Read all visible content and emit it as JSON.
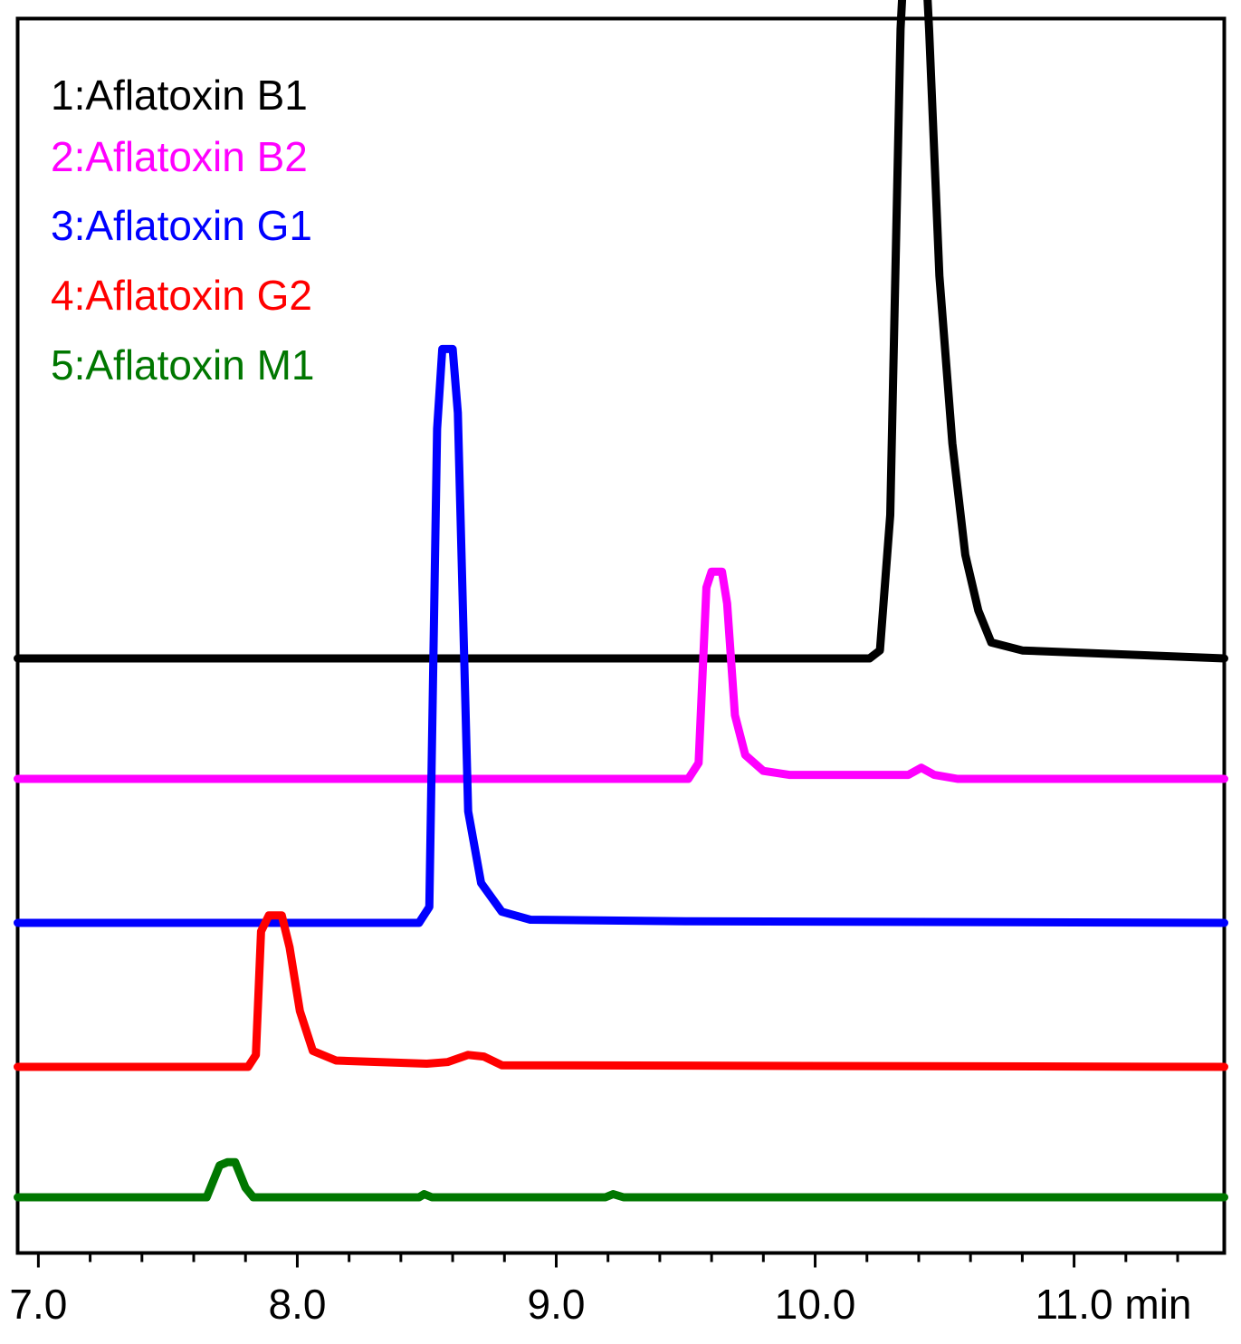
{
  "chart_data": {
    "type": "line",
    "x_unit": "min",
    "xlim": [
      6.92,
      11.58
    ],
    "x_major_ticks": [
      7.0,
      8.0,
      9.0,
      10.0,
      11.0
    ],
    "x_tick_labels": [
      "7.0",
      "8.0",
      "9.0",
      "10.0",
      "11.0 min"
    ],
    "x_minor_step": 0.2,
    "y_axis_shown": false,
    "grid": false,
    "legend_position": "top-left",
    "series": [
      {
        "name": "1:Aflatoxin B1",
        "color": "#000000",
        "peak_time": 10.39,
        "points": [
          [
            6.92,
            0
          ],
          [
            10.21,
            0
          ],
          [
            10.25,
            0.01
          ],
          [
            10.29,
            0.18
          ],
          [
            10.33,
            0.79
          ],
          [
            10.36,
            0.98
          ],
          [
            10.41,
            0.98
          ],
          [
            10.44,
            0.79
          ],
          [
            10.48,
            0.48
          ],
          [
            10.53,
            0.27
          ],
          [
            10.58,
            0.13
          ],
          [
            10.63,
            0.06
          ],
          [
            10.68,
            0.02
          ],
          [
            10.8,
            0.01
          ],
          [
            11.58,
            0
          ]
        ]
      },
      {
        "name": "2:Aflatoxin B2",
        "color": "#ff00ff",
        "peak_time": 9.62,
        "points": [
          [
            6.92,
            0
          ],
          [
            9.51,
            0
          ],
          [
            9.55,
            0.02
          ],
          [
            9.58,
            0.24
          ],
          [
            9.6,
            0.26
          ],
          [
            9.64,
            0.26
          ],
          [
            9.66,
            0.22
          ],
          [
            9.69,
            0.08
          ],
          [
            9.73,
            0.03
          ],
          [
            9.8,
            0.01
          ],
          [
            9.9,
            0.005
          ],
          [
            10.36,
            0.005
          ],
          [
            10.41,
            0.014
          ],
          [
            10.46,
            0.005
          ],
          [
            10.55,
            0
          ],
          [
            11.58,
            0
          ]
        ]
      },
      {
        "name": "3:Aflatoxin G1",
        "color": "#0000ff",
        "peak_time": 8.58,
        "points": [
          [
            6.92,
            0
          ],
          [
            8.47,
            0
          ],
          [
            8.51,
            0.02
          ],
          [
            8.54,
            0.62
          ],
          [
            8.56,
            0.72
          ],
          [
            8.6,
            0.72
          ],
          [
            8.62,
            0.64
          ],
          [
            8.66,
            0.14
          ],
          [
            8.71,
            0.05
          ],
          [
            8.79,
            0.014
          ],
          [
            8.9,
            0.004
          ],
          [
            9.5,
            0.002
          ],
          [
            11.58,
            0
          ]
        ]
      },
      {
        "name": "4:Aflatoxin G2",
        "color": "#ff0000",
        "peak_time": 7.91,
        "points": [
          [
            6.92,
            0
          ],
          [
            7.81,
            0
          ],
          [
            7.84,
            0.015
          ],
          [
            7.86,
            0.17
          ],
          [
            7.89,
            0.19
          ],
          [
            7.94,
            0.19
          ],
          [
            7.97,
            0.15
          ],
          [
            8.01,
            0.07
          ],
          [
            8.06,
            0.02
          ],
          [
            8.15,
            0.008
          ],
          [
            8.5,
            0.004
          ],
          [
            8.58,
            0.006
          ],
          [
            8.66,
            0.015
          ],
          [
            8.72,
            0.013
          ],
          [
            8.79,
            0.002
          ],
          [
            11.58,
            0
          ]
        ]
      },
      {
        "name": "5:Aflatoxin M1",
        "color": "#007700",
        "peak_time": 7.73,
        "points": [
          [
            6.92,
            0
          ],
          [
            7.65,
            0
          ],
          [
            7.7,
            0.04
          ],
          [
            7.73,
            0.044
          ],
          [
            7.76,
            0.044
          ],
          [
            7.8,
            0.012
          ],
          [
            7.83,
            0
          ],
          [
            8.47,
            0
          ],
          [
            8.49,
            0.004
          ],
          [
            8.52,
            0
          ],
          [
            9.19,
            0
          ],
          [
            9.22,
            0.004
          ],
          [
            9.26,
            0
          ],
          [
            11.58,
            0
          ]
        ]
      }
    ]
  }
}
